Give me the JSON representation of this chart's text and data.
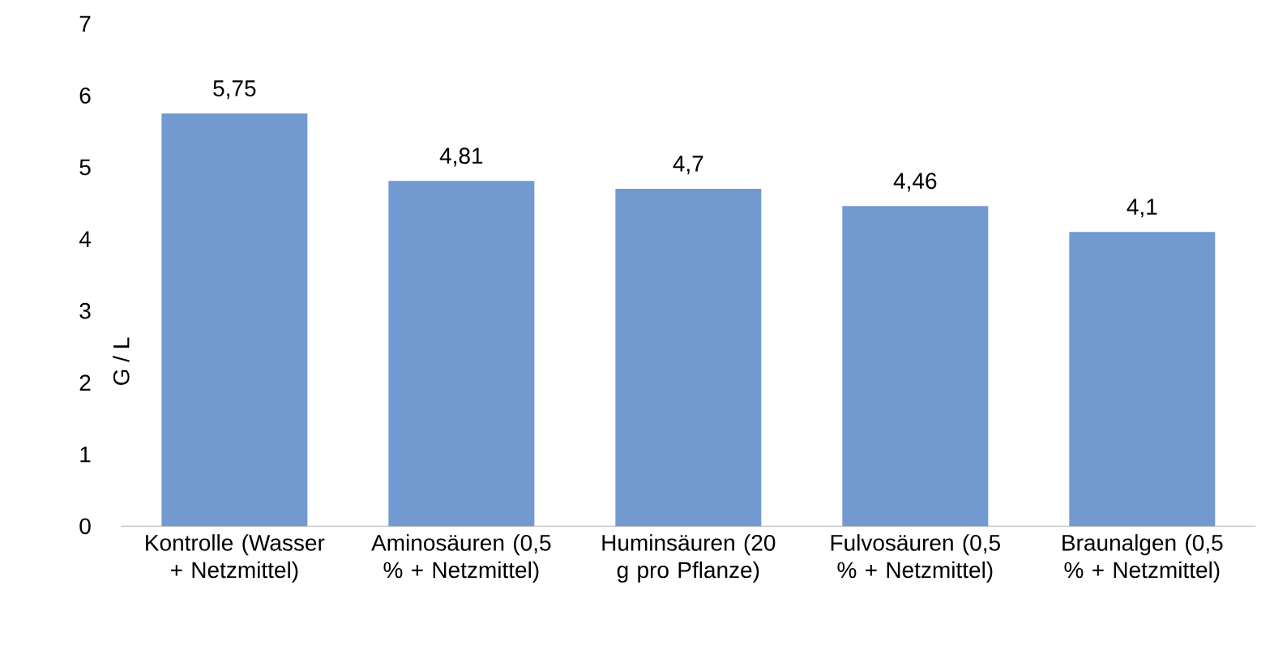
{
  "chart_data": {
    "type": "bar",
    "ylabel": "G / L",
    "categories": [
      "Kontrolle (Wasser + Netzmittel)",
      "Aminosäuren (0,5 % + Netzmittel)",
      "Huminsäuren (20 g pro Pflanze)",
      "Fulvosäuren (0,5 % + Netzmittel)",
      "Braunalgen (0,5 % + Netzmittel)"
    ],
    "values": [
      5.75,
      4.81,
      4.7,
      4.46,
      4.1
    ],
    "value_labels": [
      "5,75",
      "4,81",
      "4,7",
      "4,46",
      "4,1"
    ],
    "color": "#7399d1",
    "ylim": [
      0,
      7
    ],
    "yticks": [
      0,
      1,
      2,
      3,
      4,
      5,
      6,
      7
    ]
  }
}
